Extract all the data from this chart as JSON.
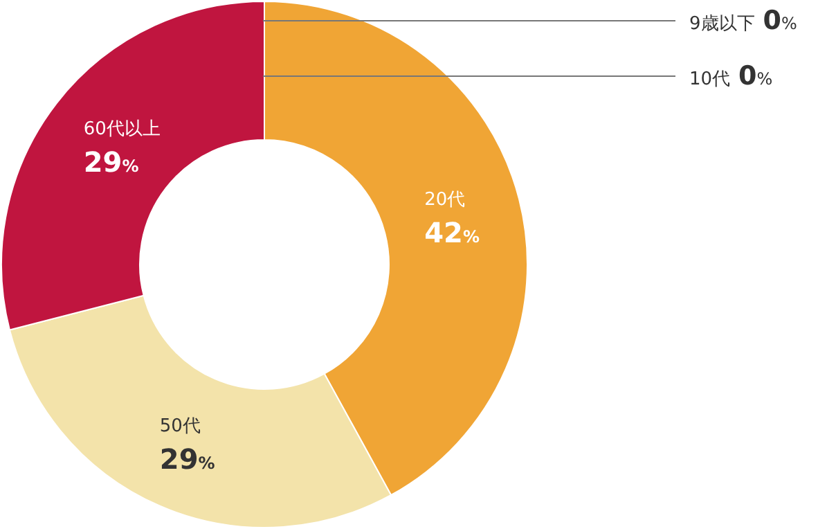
{
  "chart_data": {
    "type": "donut",
    "categories": [
      "9歳以下",
      "10代",
      "20代",
      "50代",
      "60代以上"
    ],
    "values": [
      0,
      0,
      42,
      29,
      29
    ],
    "colors": [
      "#f0a535",
      "#f0a535",
      "#f0a535",
      "#f3e3aa",
      "#c0153f"
    ],
    "value_labels": [
      "0%",
      "0%",
      "42%",
      "29%",
      "29%"
    ]
  }
}
